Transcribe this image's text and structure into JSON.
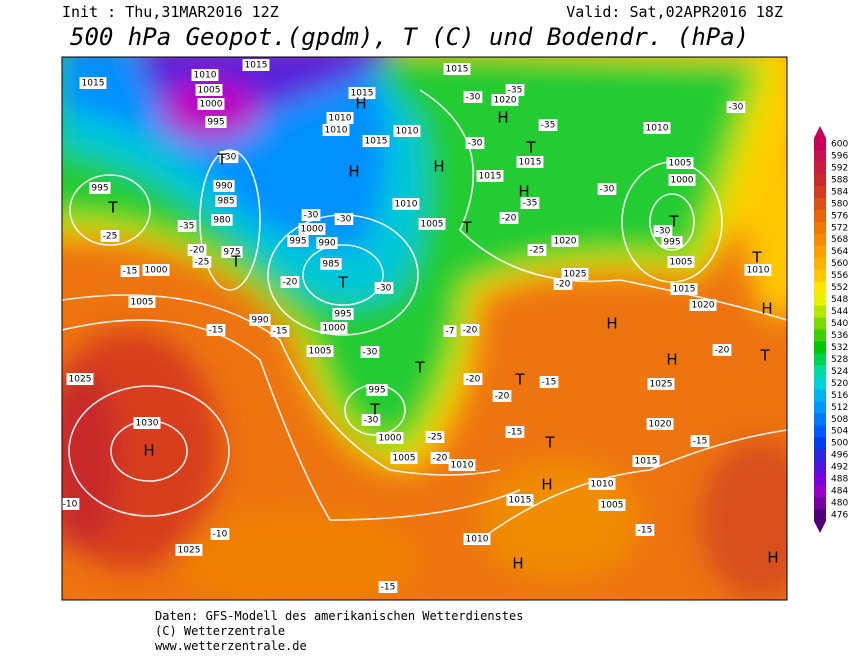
{
  "header": {
    "init": "Init : Thu,31MAR2016 12Z",
    "valid": "Valid: Sat,02APR2016 18Z",
    "title": "500 hPa Geopot.(gpdm), T (C) und Bodendr. (hPa)"
  },
  "map": {
    "pressure_labels": [
      1015,
      1010,
      1015,
      1005,
      1000,
      995,
      1000,
      995,
      990,
      985,
      980,
      975,
      1000,
      1005,
      990,
      995,
      1000,
      990,
      985,
      995,
      1000,
      1005,
      995,
      1000,
      1005,
      1010,
      1015,
      1010,
      1025,
      1030,
      1025,
      1010,
      1015,
      1010,
      1015,
      1010,
      1010,
      1005,
      1015,
      1020,
      1015,
      1015,
      1020,
      1025,
      1010,
      1005,
      1000,
      995,
      1005,
      1010,
      1015,
      1020,
      1025,
      1020,
      1015,
      1010,
      1005
    ],
    "centers": [
      "H",
      "T",
      "T",
      "T",
      "H",
      "T",
      "T",
      "H",
      "H",
      "T",
      "H",
      "T",
      "H",
      "H",
      "H",
      "T",
      "T",
      "H",
      "H",
      "T",
      "H",
      "T",
      "H",
      "T",
      "T"
    ],
    "temperature_labels": [
      -30,
      -35,
      -20,
      -25,
      -15,
      -15,
      -15,
      -20,
      -30,
      -30,
      -30,
      -30,
      -30,
      -25,
      -20,
      -20,
      -20,
      -15,
      -15,
      -20,
      -15,
      -15,
      -10,
      -10,
      -15,
      -30,
      -35,
      -30,
      -30,
      -35,
      -20,
      -25,
      -20,
      -30,
      -25,
      -30,
      -35,
      -20,
      -7
    ]
  },
  "colorbar": {
    "ticks": [
      600,
      596,
      592,
      588,
      584,
      580,
      576,
      572,
      568,
      564,
      560,
      556,
      552,
      548,
      544,
      540,
      536,
      532,
      528,
      524,
      520,
      516,
      512,
      508,
      504,
      500,
      496,
      492,
      488,
      484,
      480,
      476
    ],
    "colors": [
      "#c8005a",
      "#c8144c",
      "#c81e3c",
      "#cc2a2a",
      "#d23c1e",
      "#dc5014",
      "#e6640a",
      "#f07800",
      "#f58c00",
      "#faa000",
      "#ffb400",
      "#ffc800",
      "#ffe600",
      "#e6f000",
      "#b4e600",
      "#78dc00",
      "#3cd200",
      "#00c800",
      "#00d250",
      "#00dca0",
      "#00d2dc",
      "#00b4f0",
      "#0096ff",
      "#0078ff",
      "#005aff",
      "#003cf0",
      "#2a28dc",
      "#5014dc",
      "#7800dc",
      "#9600c8",
      "#7800a0",
      "#500078"
    ]
  },
  "footer": {
    "lines": [
      "Daten: GFS-Modell des amerikanischen Wetterdienstes",
      "(C) Wetterzentrale",
      "www.wetterzentrale.de"
    ]
  }
}
